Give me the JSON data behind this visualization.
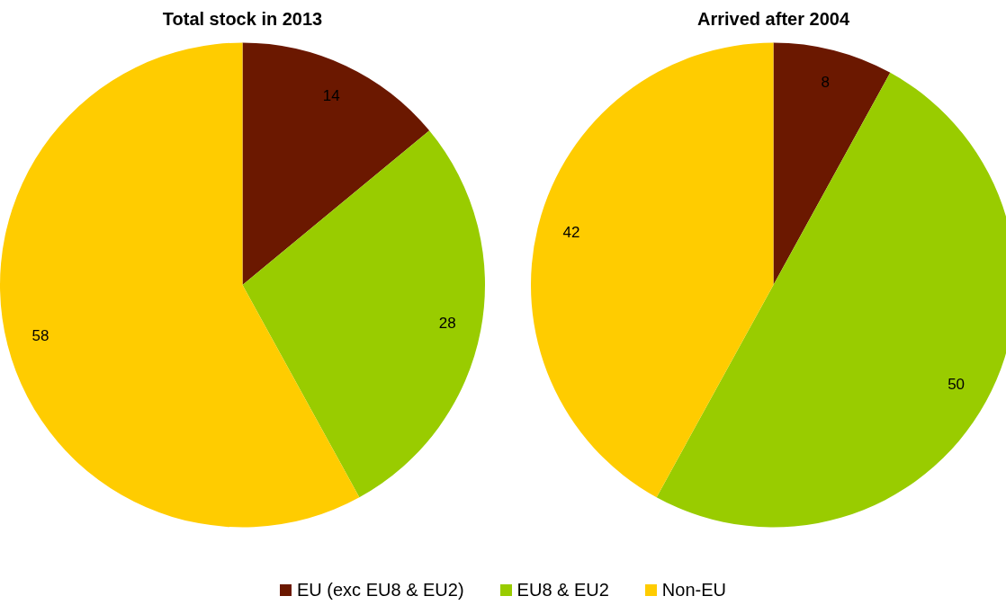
{
  "chart_data": [
    {
      "type": "pie",
      "title": "Total stock in 2013",
      "categories": [
        "EU (exc EU8 & EU2)",
        "EU8 & EU2",
        "Non-EU"
      ],
      "values": [
        14,
        28,
        58
      ],
      "colors": [
        "#6b1800",
        "#99cc00",
        "#ffcc00"
      ],
      "data_labels": true,
      "legend": "bottom"
    },
    {
      "type": "pie",
      "title": "Arrived after 2004",
      "categories": [
        null,
        null,
        null
      ],
      "values": [
        8,
        50,
        42
      ],
      "colors": [
        "#6b1800",
        "#99cc00",
        "#ffcc00"
      ],
      "data_labels": true
    }
  ]
}
